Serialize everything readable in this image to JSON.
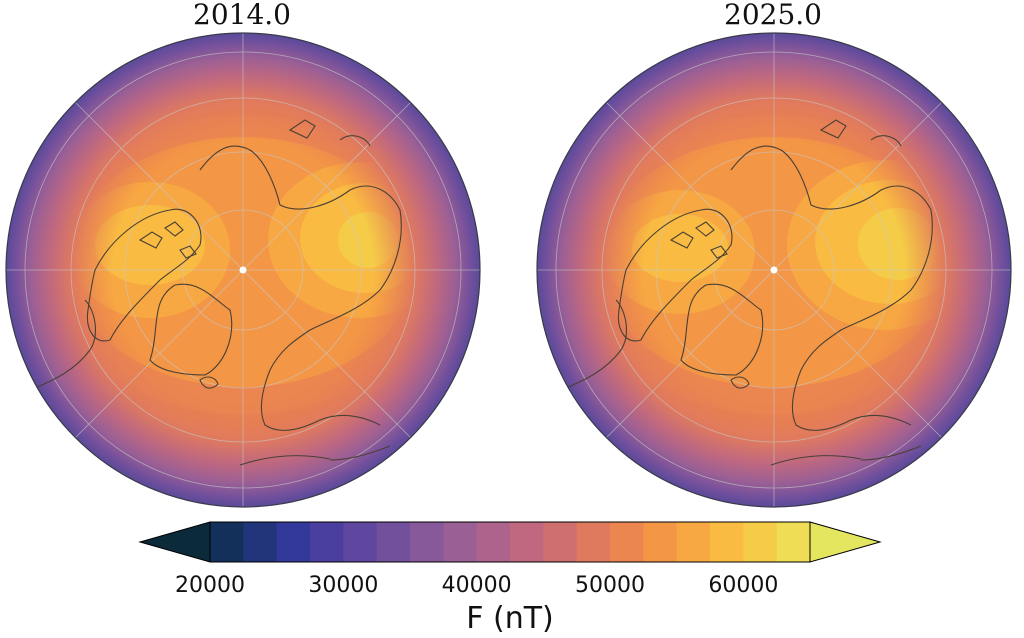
{
  "panels": [
    {
      "title": "2014.0",
      "projection": "orthographic-north-polar",
      "max_field_region": "high-latitude Eurasian lobe"
    },
    {
      "title": "2025.0",
      "projection": "orthographic-north-polar",
      "max_field_region": "high-latitude Eurasian lobe"
    }
  ],
  "colorbar": {
    "label": "F (nT)",
    "ticks": [
      "20000",
      "30000",
      "40000",
      "50000",
      "60000"
    ],
    "tick_values": [
      20000,
      30000,
      40000,
      50000,
      60000
    ],
    "min": 20000,
    "max": 65000,
    "extend": "both",
    "colors": [
      "#0b2a3a",
      "#12305a",
      "#22357a",
      "#33399a",
      "#4a3f9e",
      "#5f469e",
      "#73509c",
      "#87599a",
      "#9a5f95",
      "#ad638c",
      "#bf6880",
      "#d06f70",
      "#e07a5e",
      "#ec8650",
      "#f39646",
      "#f8a842",
      "#f9bb42",
      "#f5cc47",
      "#eedd55",
      "#e4e65f"
    ]
  },
  "map_colors": {
    "level_outer": "#5a4a9a",
    "level_mid": "#e8804f",
    "level_high": "#f5a93c",
    "level_peak": "#f7d53c",
    "coastline": "#4a4035",
    "graticule": "#c8c8c8",
    "pole_marker": "#ffffff"
  }
}
